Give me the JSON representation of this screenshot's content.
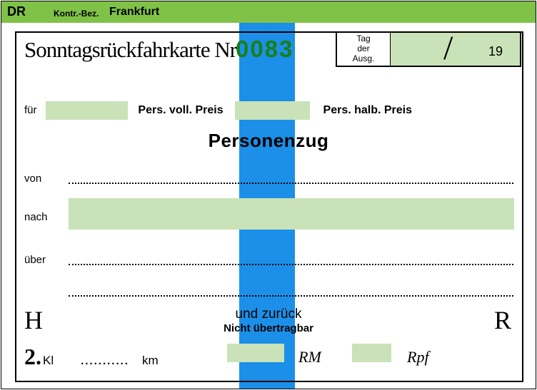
{
  "header": {
    "dr": "DR",
    "kontr": "Kontr.-Bez.",
    "city": "Frankfurt",
    "bg_color": "#7fc247"
  },
  "stripe_color": "#1c8fe8",
  "box_green": "#cae2b7",
  "title": "Sonntagsrückfahrkarte Nr",
  "ticket_number": "0083",
  "ticket_number_color": "#187f18",
  "issue": {
    "line1": "Tag",
    "line2": "der",
    "line3": "Ausg.",
    "slash": "/",
    "year_prefix": "19"
  },
  "fur": "für",
  "voll": "Pers. voll. Preis",
  "halb": "Pers. halb. Preis",
  "train_type": "Personenzug",
  "von": "von",
  "nach": "nach",
  "uber": "über",
  "H": "H",
  "R": "R",
  "und_zuruck": "und zurück",
  "nicht": "Nicht übertragbar",
  "class_num": "2.",
  "class_kl": "Kl",
  "km_dots": "...........",
  "km": "km",
  "rm": "RM",
  "rpf": "Rpf"
}
